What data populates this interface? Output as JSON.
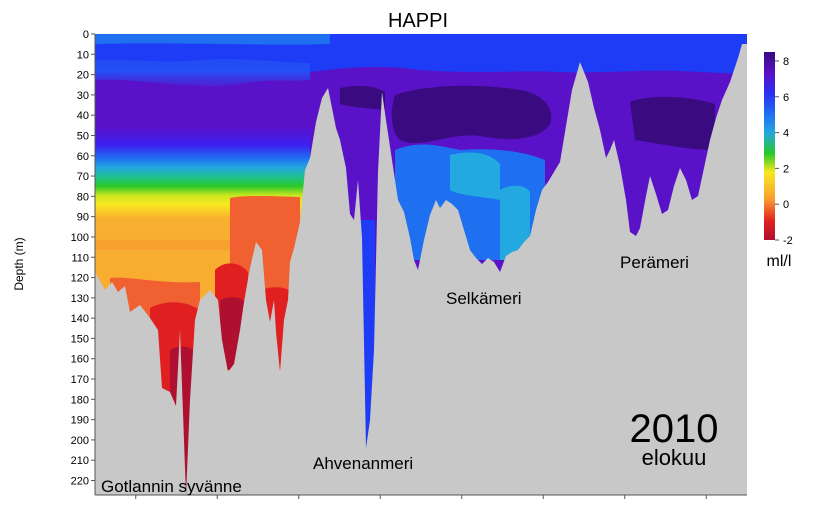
{
  "chart_data": {
    "type": "heatmap",
    "title": "HAPPI",
    "xlabel": "",
    "ylabel": "Depth (m)",
    "ylim": [
      0,
      225
    ],
    "y_ticks": [
      0,
      10,
      20,
      30,
      40,
      50,
      60,
      70,
      80,
      90,
      100,
      110,
      120,
      130,
      140,
      150,
      160,
      170,
      180,
      190,
      200,
      210,
      220
    ],
    "x_tick_count": 8,
    "colorbar": {
      "unit": "ml/l",
      "range": [
        -2,
        8.5
      ],
      "ticks": [
        8,
        6,
        4,
        2,
        0,
        -2
      ],
      "stops": [
        {
          "value": 8.5,
          "color": "#3a0a80"
        },
        {
          "value": 7.5,
          "color": "#5a12c8"
        },
        {
          "value": 6.5,
          "color": "#3e1ff0"
        },
        {
          "value": 5.5,
          "color": "#1e3cf5"
        },
        {
          "value": 4.8,
          "color": "#1e70f0"
        },
        {
          "value": 4.0,
          "color": "#24a8e0"
        },
        {
          "value": 3.0,
          "color": "#20c090"
        },
        {
          "value": 2.0,
          "color": "#28c828"
        },
        {
          "value": 1.2,
          "color": "#c8e620"
        },
        {
          "value": 0.6,
          "color": "#f8e820"
        },
        {
          "value": 0.0,
          "color": "#f8a030"
        },
        {
          "value": -0.8,
          "color": "#f06030"
        },
        {
          "value": -1.5,
          "color": "#e02020"
        },
        {
          "value": -2.0,
          "color": "#b01030"
        }
      ]
    },
    "annotations": [
      {
        "text": "Gotlannin syvänne",
        "label": "gotlannin"
      },
      {
        "text": "Ahvenanmeri",
        "label": "ahvenanmeri"
      },
      {
        "text": "Selkämeri",
        "label": "selkameri"
      },
      {
        "text": "Perämeri",
        "label": "perameri"
      }
    ],
    "year": "2010",
    "month": "elokuu"
  }
}
